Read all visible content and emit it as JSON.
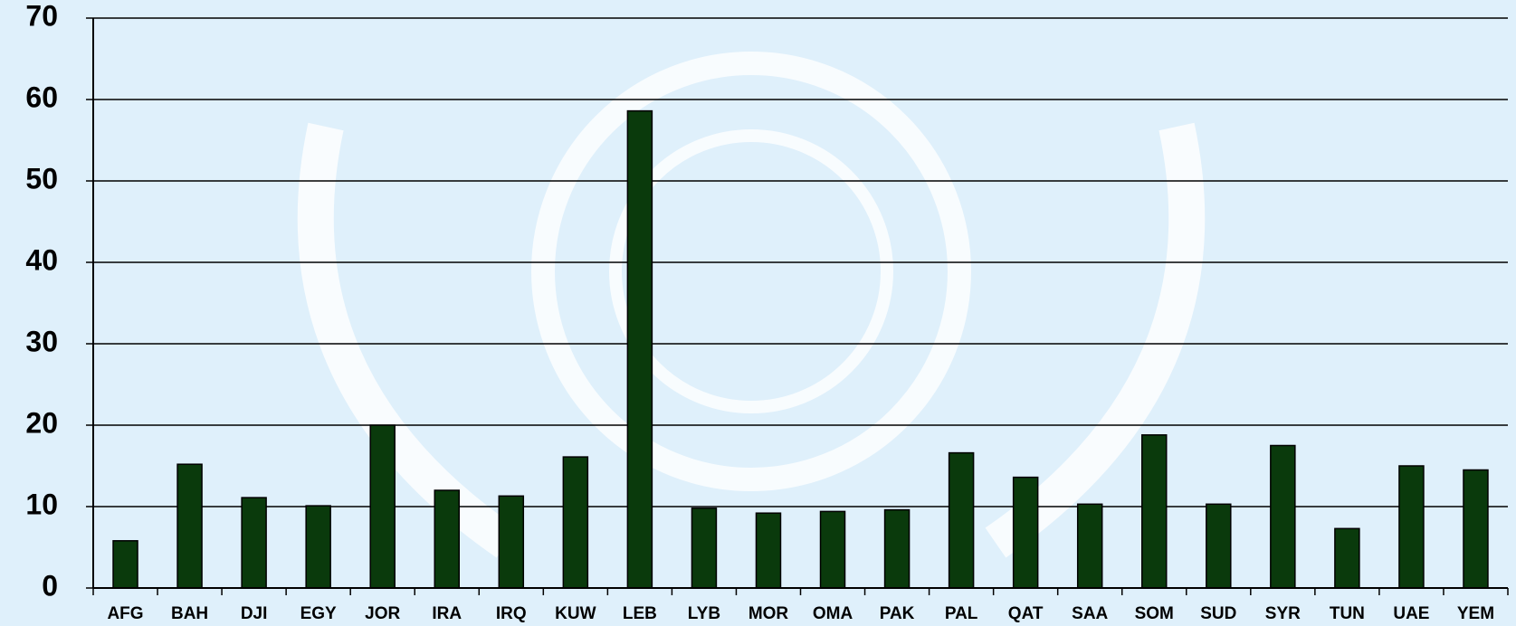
{
  "chart_data": {
    "type": "bar",
    "categories": [
      "AFG",
      "BAH",
      "DJI",
      "EGY",
      "JOR",
      "IRA",
      "IRQ",
      "KUW",
      "LEB",
      "LYB",
      "MOR",
      "OMA",
      "PAK",
      "PAL",
      "QAT",
      "SAA",
      "SOM",
      "SUD",
      "SYR",
      "TUN",
      "UAE",
      "YEM"
    ],
    "values": [
      5.8,
      15.2,
      11.1,
      10.1,
      20,
      12,
      11.3,
      16.1,
      58.6,
      9.8,
      9.2,
      9.4,
      9.6,
      16.6,
      13.6,
      10.3,
      18.8,
      10.3,
      17.5,
      7.3,
      15,
      14.5
    ],
    "color": "#0a3a0c",
    "ylim": [
      0,
      70
    ],
    "yticks": [
      0,
      10,
      20,
      30,
      40,
      50,
      60,
      70
    ],
    "grid": true
  }
}
